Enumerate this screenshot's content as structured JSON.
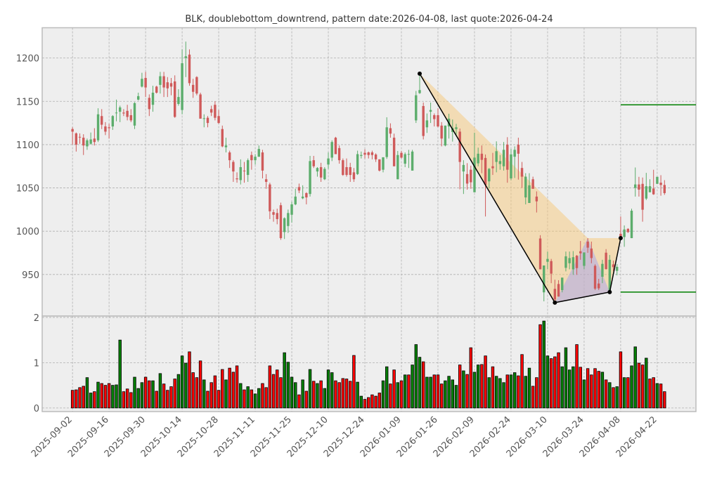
{
  "chart_data": {
    "type": "candlestick_with_volume",
    "title": "BLK, doublebottom_downtrend, pattern date:2026-04-08, last quote:2026-04-24",
    "price_axis": {
      "ylim": [
        902,
        1235
      ],
      "ticks": [
        950,
        1000,
        1050,
        1100,
        1150,
        1200
      ],
      "grid": true
    },
    "volume_axis": {
      "ylim": [
        -0.08,
        2.03
      ],
      "ticks": [
        0,
        1,
        2
      ],
      "grid": true
    },
    "x_axis": {
      "xlim": [
        -8.3,
        170.6
      ],
      "tick_index": [
        0,
        10,
        20,
        30,
        40,
        50,
        60,
        70,
        80,
        90,
        100,
        110,
        120,
        130,
        140,
        150,
        160
      ],
      "tick_labels": [
        "2025-09-02",
        "2025-09-16",
        "2025-09-30",
        "2025-10-14",
        "2025-10-28",
        "2025-11-11",
        "2025-11-25",
        "2025-12-10",
        "2025-12-24",
        "2026-01-09",
        "2026-01-26",
        "2026-02-09",
        "2026-02-24",
        "2026-03-10",
        "2026-03-24",
        "2026-04-08",
        "2026-04-22"
      ]
    },
    "colors": {
      "up": "#5cad6c",
      "down": "#cf5a5a",
      "vol_up": "#008000",
      "vol_down": "#ff0000",
      "pattern_line": "#000000",
      "orange_fill": "#f5c87a",
      "blue_fill": "#9d9df5",
      "level_line": "#008000",
      "background": "#eeeeee"
    },
    "ohlc_columns": [
      "open",
      "high",
      "low",
      "close"
    ],
    "ohlc": [
      [
        1118,
        1120,
        1100,
        1115
      ],
      [
        1113,
        1114,
        1092,
        1100
      ],
      [
        1109,
        1113,
        1101,
        1108.5
      ],
      [
        1108,
        1112,
        1088,
        1099
      ],
      [
        1098,
        1107,
        1094,
        1105
      ],
      [
        1101,
        1114,
        1100,
        1106
      ],
      [
        1107,
        1119,
        1099,
        1103
      ],
      [
        1105,
        1142,
        1103,
        1135
      ],
      [
        1133,
        1141,
        1118,
        1123
      ],
      [
        1121,
        1126,
        1111,
        1115
      ],
      [
        1120,
        1124,
        1107,
        1119
      ],
      [
        1121,
        1134,
        1117,
        1133
      ],
      [
        1136.5,
        1152,
        1127,
        1137
      ],
      [
        1138,
        1145,
        1126,
        1143
      ],
      [
        1137,
        1141,
        1133,
        1136
      ],
      [
        1139,
        1146,
        1128,
        1132
      ],
      [
        1134,
        1141,
        1126,
        1128
      ],
      [
        1122,
        1149,
        1118,
        1148
      ],
      [
        1152,
        1160,
        1151,
        1156
      ],
      [
        1167,
        1183,
        1166,
        1176
      ],
      [
        1177,
        1184,
        1155,
        1166
      ],
      [
        1154,
        1158,
        1133,
        1141
      ],
      [
        1146,
        1168,
        1138,
        1160
      ],
      [
        1167,
        1168,
        1159,
        1160
      ],
      [
        1169,
        1184,
        1159,
        1179
      ],
      [
        1179,
        1184,
        1155,
        1166
      ],
      [
        1172,
        1178,
        1155,
        1165
      ],
      [
        1171,
        1177,
        1157,
        1167
      ],
      [
        1173,
        1180,
        1131,
        1132
      ],
      [
        1147,
        1164,
        1145,
        1155
      ],
      [
        1140,
        1210,
        1135,
        1194
      ],
      [
        1200,
        1219,
        1178,
        1202
      ],
      [
        1204,
        1210,
        1168,
        1171
      ],
      [
        1169,
        1176,
        1154,
        1161
      ],
      [
        1178,
        1179,
        1157,
        1159
      ],
      [
        1158,
        1160,
        1130,
        1130
      ],
      [
        1130,
        1135,
        1120,
        1130.5
      ],
      [
        1131,
        1133,
        1120,
        1125
      ],
      [
        1141,
        1145,
        1133,
        1137
      ],
      [
        1146,
        1150,
        1128,
        1131
      ],
      [
        1133,
        1140,
        1124,
        1125
      ],
      [
        1118,
        1122,
        1097,
        1098
      ],
      [
        1097,
        1108,
        1091,
        1099
      ],
      [
        1091,
        1093,
        1073,
        1082
      ],
      [
        1080,
        1082,
        1057,
        1069
      ],
      [
        1061,
        1068,
        1056,
        1060
      ],
      [
        1059,
        1083,
        1054,
        1074
      ],
      [
        1070,
        1080,
        1056,
        1069.5
      ],
      [
        1065,
        1084,
        1057,
        1082
      ],
      [
        1088,
        1092,
        1071,
        1082
      ],
      [
        1082,
        1089,
        1077,
        1086
      ],
      [
        1086,
        1099,
        1086,
        1095
      ],
      [
        1091,
        1094,
        1061,
        1070
      ],
      [
        1060,
        1066,
        1049,
        1057
      ],
      [
        1054,
        1056,
        1014,
        1023
      ],
      [
        1022,
        1025,
        1011,
        1019
      ],
      [
        1021,
        1026,
        1008,
        1014
      ],
      [
        1030,
        1033,
        990,
        992
      ],
      [
        999,
        1016,
        991,
        1015
      ],
      [
        1006,
        1025,
        998,
        1021
      ],
      [
        1019,
        1034,
        1010,
        1031
      ],
      [
        1031,
        1049,
        1030,
        1040
      ],
      [
        1051,
        1055,
        1044,
        1047
      ],
      [
        1038,
        1053,
        1037,
        1040
      ],
      [
        1044,
        1045,
        1031,
        1039
      ],
      [
        1043,
        1087,
        1040,
        1081
      ],
      [
        1082,
        1087,
        1073,
        1075
      ],
      [
        1069,
        1074,
        1063,
        1073
      ],
      [
        1074,
        1079,
        1057,
        1062
      ],
      [
        1060,
        1074,
        1059,
        1072
      ],
      [
        1077,
        1091,
        1072,
        1084
      ],
      [
        1085,
        1105,
        1081,
        1103
      ],
      [
        1108,
        1109,
        1089,
        1089
      ],
      [
        1096,
        1099,
        1078,
        1082
      ],
      [
        1082,
        1084,
        1064,
        1065
      ],
      [
        1074,
        1084,
        1063,
        1065
      ],
      [
        1074,
        1079,
        1057,
        1065
      ],
      [
        1068,
        1073,
        1057,
        1060
      ],
      [
        1066,
        1093,
        1065,
        1089
      ],
      [
        1087,
        1092,
        1084,
        1088
      ],
      [
        1090.5,
        1094.6,
        1084,
        1088.4
      ],
      [
        1091,
        1092,
        1084,
        1088
      ],
      [
        1091,
        1093,
        1083,
        1088
      ],
      [
        1088.6,
        1090,
        1080,
        1083
      ],
      [
        1083,
        1083,
        1069,
        1070
      ],
      [
        1071,
        1085.4,
        1068,
        1085.4
      ],
      [
        1085.7,
        1131.6,
        1083.5,
        1120
      ],
      [
        1119,
        1124.6,
        1108,
        1112.7
      ],
      [
        1108,
        1112.7,
        1075,
        1075
      ],
      [
        1060,
        1092.7,
        1060,
        1088
      ],
      [
        1090.5,
        1092.7,
        1084,
        1085
      ],
      [
        1078,
        1091,
        1074,
        1089
      ],
      [
        1089,
        1094,
        1073,
        1089.2
      ],
      [
        1070,
        1094,
        1070,
        1092
      ],
      [
        1128,
        1162,
        1125,
        1157
      ],
      [
        1159.5,
        1182,
        1158.6,
        1163
      ],
      [
        1144.6,
        1148.6,
        1106,
        1110
      ],
      [
        1120,
        1136,
        1113.5,
        1128
      ],
      [
        1138,
        1148.6,
        1125,
        1140
      ],
      [
        1134,
        1136,
        1121,
        1129.5
      ],
      [
        1134,
        1142,
        1120,
        1121
      ],
      [
        1122,
        1126,
        1098,
        1107
      ],
      [
        1099,
        1122,
        1098,
        1122
      ],
      [
        1121,
        1135.7,
        1107,
        1130
      ],
      [
        1114.6,
        1129,
        1103.5,
        1119
      ],
      [
        1118,
        1124,
        1111.6,
        1120
      ],
      [
        1115,
        1118.6,
        1048.4,
        1080
      ],
      [
        1069,
        1082,
        1043,
        1076.5
      ],
      [
        1066,
        1078.6,
        1048,
        1055
      ],
      [
        1071,
        1075.7,
        1049,
        1056.5
      ],
      [
        1045,
        1113.8,
        1045,
        1085
      ],
      [
        1078.4,
        1096.5,
        1075,
        1089.5
      ],
      [
        1089.5,
        1099,
        1067,
        1082.4
      ],
      [
        1084.6,
        1088.6,
        1017,
        1053.5
      ],
      [
        1057.6,
        1073,
        1049.5,
        1072
      ],
      [
        1075,
        1090.5,
        1065,
        1072.7
      ],
      [
        1080,
        1103.8,
        1068,
        1092.4
      ],
      [
        1077.6,
        1088,
        1071,
        1081
      ],
      [
        1075,
        1103,
        1070,
        1094
      ],
      [
        1100,
        1108.6,
        1056,
        1071
      ],
      [
        1061,
        1095,
        1059,
        1088.7
      ],
      [
        1086,
        1098,
        1061.5,
        1094
      ],
      [
        1100,
        1108,
        1059.6,
        1089.5
      ],
      [
        1073,
        1080,
        1050,
        1063
      ],
      [
        1039,
        1067,
        1031,
        1063
      ],
      [
        1032.6,
        1067,
        1032.6,
        1053
      ],
      [
        1060,
        1063,
        1049,
        1049
      ],
      [
        1040,
        1046,
        1021.6,
        1034.5
      ],
      [
        991.6,
        995.4,
        956,
        956
      ],
      [
        929.4,
        960.4,
        919,
        960.4
      ],
      [
        964.7,
        976.5,
        956,
        968
      ],
      [
        965.5,
        968,
        940,
        951
      ],
      [
        933.4,
        944,
        917.5,
        921
      ],
      [
        939,
        943.4,
        924.5,
        924.5
      ],
      [
        932,
        946.4,
        929.4,
        946.4
      ],
      [
        957.7,
        976.5,
        953.6,
        971
      ],
      [
        963,
        976.5,
        956,
        969
      ],
      [
        956,
        977,
        949.6,
        970
      ],
      [
        971.7,
        972.5,
        949.6,
        957.4
      ],
      [
        976.8,
        988.7,
        967,
        974.4
      ],
      [
        960,
        975.5,
        956,
        975.5
      ],
      [
        988,
        992,
        975,
        981
      ],
      [
        980,
        988,
        963,
        969
      ],
      [
        960,
        961.7,
        932,
        933.7
      ],
      [
        939.6,
        945,
        932,
        934
      ],
      [
        947.4,
        967,
        940,
        962.3
      ],
      [
        975.2,
        979.3,
        955.7,
        956.3
      ],
      [
        930,
        972.5,
        929.7,
        967
      ],
      [
        961.7,
        966,
        954,
        958.5
      ],
      [
        954.2,
        962,
        949,
        958.8
      ],
      [
        997,
        1017,
        992,
        993
      ],
      [
        993.3,
        1006.7,
        982,
        1002
      ],
      [
        1002.7,
        1003.5,
        998,
        999
      ],
      [
        992,
        1026,
        992,
        1023.7
      ],
      [
        1050,
        1073.6,
        1040,
        1054
      ],
      [
        1054,
        1062.8,
        1040,
        1048
      ],
      [
        1054.7,
        1062,
        1011,
        1024.8
      ],
      [
        1037.7,
        1067.4,
        1036,
        1052
      ],
      [
        1045,
        1060,
        1045,
        1052
      ],
      [
        1049.3,
        1071,
        1042,
        1042.6
      ],
      [
        1054.7,
        1062.8,
        1054.7,
        1062.8
      ],
      [
        1056,
        1064.7,
        1041,
        1053.4
      ],
      [
        1053.4,
        1059,
        1042,
        1044
      ]
    ],
    "volume": [
      0.39,
      0.4,
      0.45,
      0.48,
      0.67,
      0.33,
      0.36,
      0.57,
      0.54,
      0.5,
      0.54,
      0.5,
      0.51,
      1.5,
      0.36,
      0.42,
      0.34,
      0.68,
      0.43,
      0.56,
      0.68,
      0.6,
      0.6,
      0.37,
      0.76,
      0.53,
      0.39,
      0.47,
      0.64,
      0.74,
      1.15,
      0.99,
      1.24,
      0.78,
      0.67,
      1.04,
      0.62,
      0.37,
      0.56,
      0.71,
      0.39,
      0.85,
      0.62,
      0.88,
      0.79,
      0.93,
      0.54,
      0.4,
      0.47,
      0.4,
      0.31,
      0.43,
      0.54,
      0.45,
      0.93,
      0.74,
      0.84,
      0.67,
      1.22,
      1.01,
      0.68,
      0.56,
      0.29,
      0.62,
      0.37,
      0.85,
      0.59,
      0.54,
      0.6,
      0.43,
      0.84,
      0.78,
      0.6,
      0.56,
      0.65,
      0.64,
      0.59,
      1.16,
      0.57,
      0.26,
      0.19,
      0.23,
      0.29,
      0.26,
      0.33,
      0.6,
      0.91,
      0.53,
      0.84,
      0.56,
      0.6,
      0.73,
      0.73,
      0.95,
      1.4,
      1.12,
      1.02,
      0.68,
      0.68,
      0.73,
      0.73,
      0.53,
      0.6,
      0.7,
      0.62,
      0.5,
      0.95,
      0.82,
      0.74,
      1.33,
      0.79,
      0.95,
      0.96,
      1.15,
      0.67,
      0.91,
      0.7,
      0.65,
      0.56,
      0.73,
      0.73,
      0.78,
      0.71,
      1.18,
      0.7,
      0.88,
      0.48,
      0.67,
      1.84,
      1.92,
      1.15,
      1.09,
      1.13,
      1.22,
      0.91,
      1.33,
      0.84,
      0.91,
      1.4,
      0.9,
      0.62,
      0.87,
      0.73,
      0.87,
      0.81,
      0.79,
      0.62,
      0.56,
      0.45,
      0.47,
      1.24,
      0.67,
      0.67,
      0.93,
      1.35,
      0.99,
      0.95,
      1.1,
      0.64,
      0.67,
      0.54,
      0.53,
      0.36
    ],
    "volume_direction": "rrrrggrgrrrgggrrrgggrrgrgrrrrgggrrrrgrrrrrgrrrgrgrggrrrrrrggggrgrgrgrgggrrrrrrggrrrrrggrrgrgrgggrggrrrggggrgrrggrrgrgggrggrrggrrrggrrrggggrrgrrrrgrgrgrgrggrrgrrgrr",
    "pattern": {
      "points": [
        {
          "index": 95,
          "price": 1182
        },
        {
          "index": 132,
          "price": 917.5
        },
        {
          "index": 147,
          "price": 929.7
        },
        {
          "index": 150,
          "price": 992
        }
      ],
      "orange_polygon": [
        {
          "index": 95,
          "price": 1182
        },
        {
          "index": 141,
          "price": 992
        },
        {
          "index": 150,
          "price": 992
        },
        {
          "index": 147,
          "price": 929.7
        },
        {
          "index": 132,
          "price": 917.5
        }
      ],
      "blue_triangle": [
        {
          "index": 132,
          "price": 917.5
        },
        {
          "index": 141,
          "price": 992
        },
        {
          "index": 147,
          "price": 929.7
        }
      ],
      "levels": [
        {
          "price": 1146,
          "from_index": 150
        },
        {
          "price": 929.7,
          "from_index": 150
        }
      ]
    }
  }
}
